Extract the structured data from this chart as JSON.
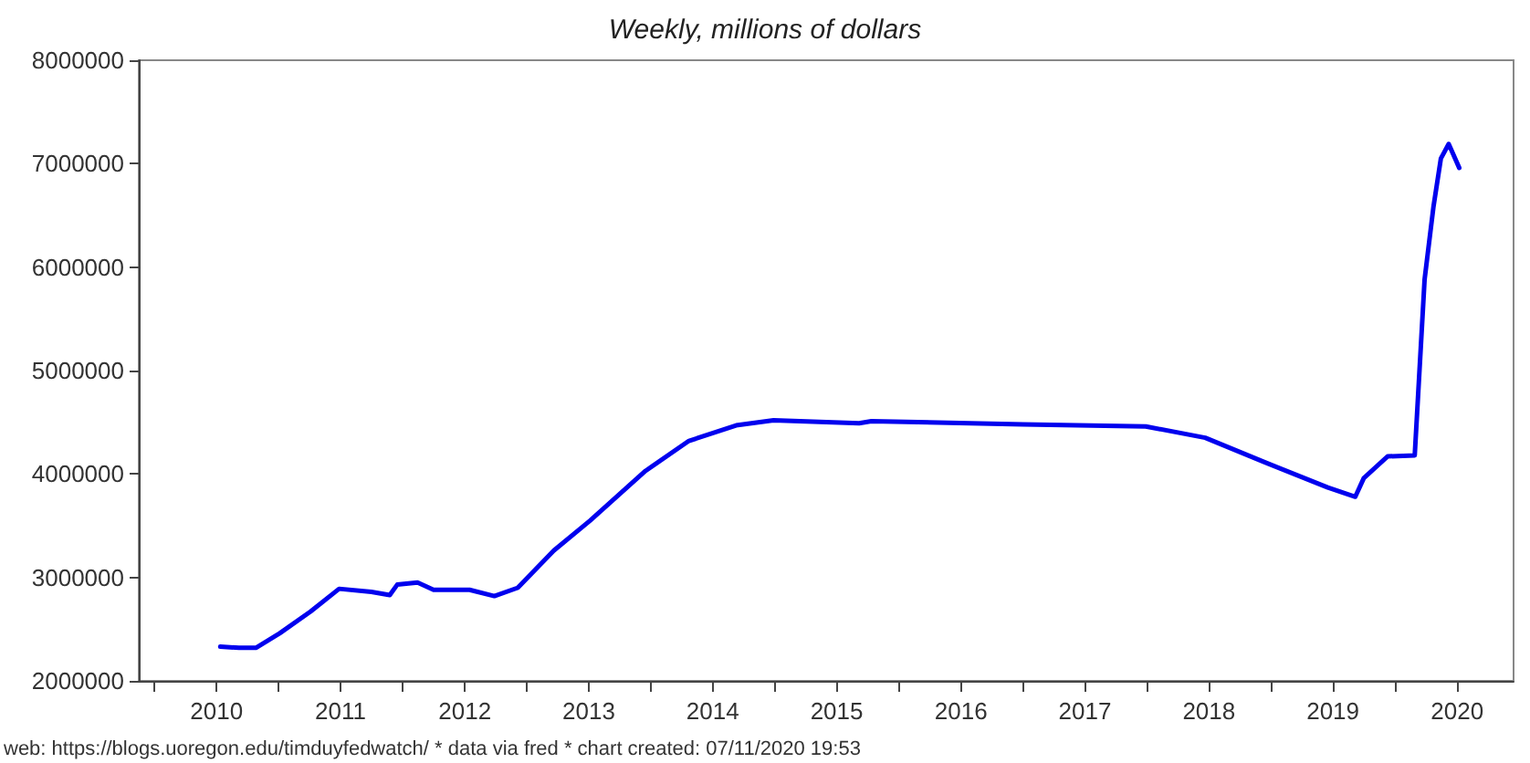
{
  "chart_data": {
    "type": "line",
    "title": "Weekly, millions of dollars",
    "annotations": [
      "web: https://blogs.uoregon.edu/timduyfedwatch/ * data via fred * chart created: 07/11/2020 19:53"
    ],
    "x": [
      "2010-07-13",
      "2010-09-06",
      "2010-10-27",
      "2011-01-04",
      "2011-04-05",
      "2011-06-28",
      "2011-10-01",
      "2011-11-24",
      "2011-12-16",
      "2012-02-14",
      "2012-04-01",
      "2012-07-16",
      "2012-09-27",
      "2012-12-05",
      "2013-03-21",
      "2013-07-06",
      "2013-12-16",
      "2014-04-23",
      "2014-09-09",
      "2014-12-28",
      "2015-09-06",
      "2015-10-12",
      "2017-01-01",
      "2017-12-28",
      "2018-06-21",
      "2018-12-16",
      "2019-06-17",
      "2019-09-06",
      "2019-10-01",
      "2019-12-10",
      "2020-02-28",
      "2020-03-28",
      "2020-04-23",
      "2020-05-15",
      "2020-06-07",
      "2020-07-08"
    ],
    "series": [
      {
        "color": "#0000ee",
        "values": [
          2330000,
          2320000,
          2320000,
          2460000,
          2670000,
          2890000,
          2860000,
          2830000,
          2930000,
          2950000,
          2880000,
          2880000,
          2820000,
          2900000,
          3260000,
          3550000,
          4030000,
          4320000,
          4470000,
          4520000,
          4490000,
          4510000,
          4480000,
          4460000,
          4350000,
          4110000,
          3870000,
          3780000,
          3960000,
          4170000,
          4180000,
          5880000,
          6580000,
          7050000,
          7190000,
          6960000
        ]
      }
    ],
    "xlim": [
      "2009-11-15",
      "2020-12-15"
    ],
    "xticks": [
      {
        "value": "2010-01-01",
        "label": null
      },
      {
        "value": "2010-07-02",
        "label": "2010"
      },
      {
        "value": "2011-01-01",
        "label": null
      },
      {
        "value": "2011-07-02",
        "label": "2011"
      },
      {
        "value": "2012-01-01",
        "label": null
      },
      {
        "value": "2012-07-02",
        "label": "2012"
      },
      {
        "value": "2013-01-01",
        "label": null
      },
      {
        "value": "2013-07-02",
        "label": "2013"
      },
      {
        "value": "2014-01-01",
        "label": null
      },
      {
        "value": "2014-07-02",
        "label": "2014"
      },
      {
        "value": "2015-01-01",
        "label": null
      },
      {
        "value": "2015-07-02",
        "label": "2015"
      },
      {
        "value": "2016-01-01",
        "label": null
      },
      {
        "value": "2016-07-02",
        "label": "2016"
      },
      {
        "value": "2017-01-01",
        "label": null
      },
      {
        "value": "2017-07-02",
        "label": "2017"
      },
      {
        "value": "2018-01-01",
        "label": null
      },
      {
        "value": "2018-07-02",
        "label": "2018"
      },
      {
        "value": "2019-01-01",
        "label": null
      },
      {
        "value": "2019-07-02",
        "label": "2019"
      },
      {
        "value": "2020-01-01",
        "label": null
      },
      {
        "value": "2020-07-02",
        "label": "2020"
      }
    ],
    "ylim": [
      2000000,
      8000000
    ],
    "yticks": [
      2000000,
      3000000,
      4000000,
      5000000,
      6000000,
      7000000,
      8000000
    ],
    "grid": false,
    "marker": "none",
    "line_style": "solid"
  }
}
